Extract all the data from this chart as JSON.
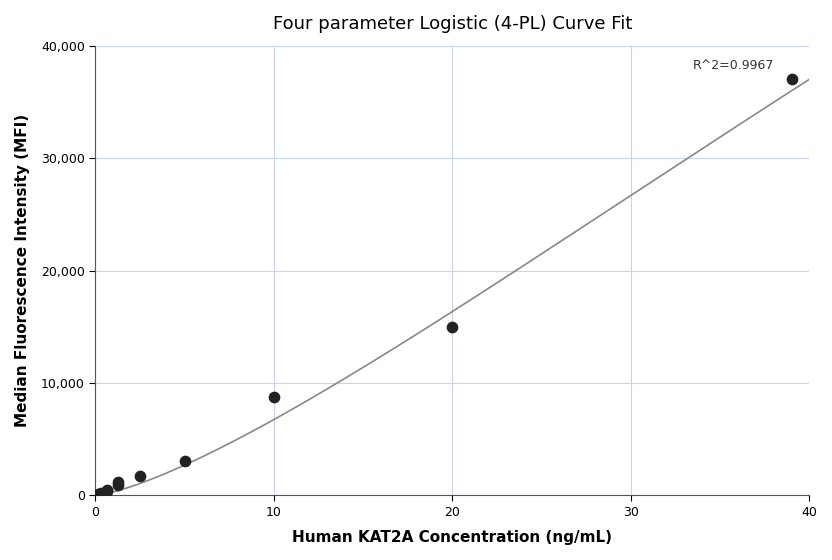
{
  "title": "Four parameter Logistic (4-PL) Curve Fit",
  "xlabel": "Human KAT2A Concentration (ng/mL)",
  "ylabel": "Median Fluorescence Intensity (MFI)",
  "scatter_x": [
    0.156,
    0.313,
    0.625,
    0.625,
    1.25,
    1.25,
    2.5,
    5.0,
    10.0,
    20.0,
    39.063
  ],
  "scatter_y": [
    100,
    200,
    400,
    500,
    900,
    1200,
    1700,
    3100,
    8800,
    15000,
    37000
  ],
  "r_squared": "R^2=0.9967",
  "xlim": [
    0,
    40
  ],
  "ylim": [
    0,
    40000
  ],
  "yticks": [
    0,
    10000,
    20000,
    30000,
    40000
  ],
  "xticks": [
    0,
    10,
    20,
    30,
    40
  ],
  "curve_color": "#888888",
  "scatter_color": "#222222",
  "background_color": "#ffffff",
  "grid_color": "#c8d4e8",
  "title_fontsize": 13,
  "label_fontsize": 11,
  "4pl_A": 0,
  "4pl_D": 200000,
  "4pl_C": 120.0,
  "4pl_B": 1.35
}
